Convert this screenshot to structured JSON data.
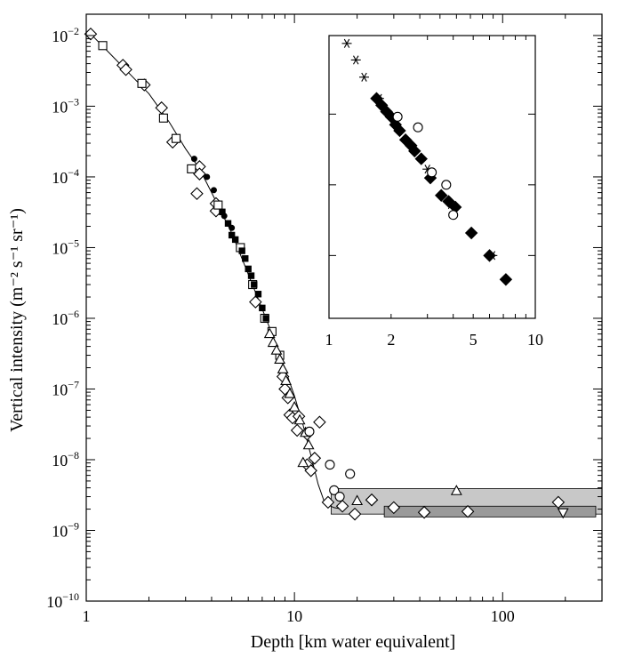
{
  "chart_data": [
    {
      "type": "scatter",
      "xscale": "log",
      "yscale": "log",
      "xlim": [
        1,
        300
      ],
      "ylim": [
        1e-10,
        0.02
      ],
      "xlabel": "Depth   [km water equivalent]",
      "ylabel": "Vertical intensity   (m⁻² s⁻¹ sr⁻¹)",
      "x_ticks": [
        {
          "value": 1,
          "label": "1"
        },
        {
          "value": 10,
          "label": "10"
        },
        {
          "value": 100,
          "label": "100"
        }
      ],
      "y_ticks": [
        {
          "value": 1e-10,
          "base": "10",
          "exp": "−10"
        },
        {
          "value": 1e-09,
          "base": "10",
          "exp": "−9"
        },
        {
          "value": 1e-08,
          "base": "10",
          "exp": "−8"
        },
        {
          "value": 1e-07,
          "base": "10",
          "exp": "−7"
        },
        {
          "value": 1e-06,
          "base": "10",
          "exp": "−6"
        },
        {
          "value": 1e-05,
          "base": "10",
          "exp": "−5"
        },
        {
          "value": 0.0001,
          "base": "10",
          "exp": "−4"
        },
        {
          "value": 0.001,
          "base": "10",
          "exp": "−3"
        },
        {
          "value": 0.01,
          "base": "10",
          "exp": "−2"
        }
      ],
      "curve": [
        [
          1.05,
          0.0105
        ],
        [
          1.5,
          0.0036
        ],
        [
          2.0,
          0.0015
        ],
        [
          2.5,
          0.0006
        ],
        [
          3.0,
          0.00025
        ],
        [
          3.5,
          0.00013
        ],
        [
          4.0,
          6e-05
        ],
        [
          5.0,
          1.6e-05
        ],
        [
          6.0,
          4.2e-06
        ],
        [
          7.0,
          1.35e-06
        ],
        [
          8.0,
          5e-07
        ],
        [
          9.0,
          1.95e-07
        ],
        [
          10.0,
          8e-08
        ],
        [
          11.0,
          3.1e-08
        ],
        [
          12.0,
          1.15e-08
        ],
        [
          13.0,
          4.5e-09
        ],
        [
          14.0,
          2.4e-09
        ],
        [
          15.5,
          2.1e-09
        ],
        [
          17.0,
          2e-09
        ]
      ],
      "bands": [
        {
          "x": [
            15,
            300
          ],
          "y_low": 1.7e-09,
          "y_high": 3.9e-09,
          "color": "#c8c8c8"
        },
        {
          "x": [
            27,
            280
          ],
          "y_low": 1.55e-09,
          "y_high": 2.2e-09,
          "color": "#9a9a9a"
        }
      ],
      "series": [
        {
          "marker": "diamond-open",
          "points": [
            {
              "x": 1.05,
              "y": 0.0105
            },
            {
              "x": 1.5,
              "y": 0.0038
            },
            {
              "x": 1.55,
              "y": 0.0033
            },
            {
              "x": 1.9,
              "y": 0.002
            },
            {
              "x": 2.3,
              "y": 0.00095
            },
            {
              "x": 2.6,
              "y": 0.00031
            },
            {
              "x": 3.5,
              "y": 0.00014
            },
            {
              "x": 3.5,
              "y": 0.00011
            },
            {
              "x": 3.4,
              "y": 5.8e-05
            },
            {
              "x": 4.2,
              "y": 4.2e-05
            },
            {
              "x": 4.2,
              "y": 3.3e-05
            },
            {
              "x": 6.5,
              "y": 1.7e-06
            },
            {
              "x": 8.8,
              "y": 1.5e-07
            },
            {
              "x": 9.0,
              "y": 1e-07
            },
            {
              "x": 9.3,
              "y": 7.5e-08
            },
            {
              "x": 9.5,
              "y": 4.3e-08
            },
            {
              "x": 9.8,
              "y": 3.9e-08
            },
            {
              "x": 10.3,
              "y": 2.6e-08
            },
            {
              "x": 10.5,
              "y": 4.1e-08
            },
            {
              "x": 11.5,
              "y": 2.3e-08
            },
            {
              "x": 13.2,
              "y": 3.4e-08
            },
            {
              "x": 12.5,
              "y": 1.05e-08
            },
            {
              "x": 11.5,
              "y": 8.5e-09
            },
            {
              "x": 12.0,
              "y": 7e-09
            },
            {
              "x": 14.5,
              "y": 2.5e-09
            },
            {
              "x": 17.0,
              "y": 2.2e-09
            },
            {
              "x": 19.5,
              "y": 1.7e-09
            },
            {
              "x": 23.5,
              "y": 2.7e-09
            },
            {
              "x": 30.0,
              "y": 2.1e-09
            },
            {
              "x": 42.0,
              "y": 1.8e-09
            },
            {
              "x": 68.0,
              "y": 1.85e-09
            },
            {
              "x": 185.0,
              "y": 2.5e-09
            }
          ]
        },
        {
          "marker": "square-open",
          "points": [
            {
              "x": 1.2,
              "y": 0.0072
            },
            {
              "x": 1.85,
              "y": 0.0021
            },
            {
              "x": 2.35,
              "y": 0.00068
            },
            {
              "x": 2.7,
              "y": 0.00035
            },
            {
              "x": 3.2,
              "y": 0.00013
            },
            {
              "x": 4.3,
              "y": 4e-05
            },
            {
              "x": 5.5,
              "y": 1e-05
            },
            {
              "x": 6.3,
              "y": 3e-06
            },
            {
              "x": 7.2,
              "y": 1e-06
            },
            {
              "x": 7.8,
              "y": 6.5e-07
            },
            {
              "x": 8.5,
              "y": 3e-07
            }
          ]
        },
        {
          "marker": "square-filled",
          "points": [
            {
              "x": 4.5,
              "y": 3.2e-05
            },
            {
              "x": 4.8,
              "y": 2.2e-05
            },
            {
              "x": 5.0,
              "y": 1.5e-05
            },
            {
              "x": 5.2,
              "y": 1.3e-05
            },
            {
              "x": 5.6,
              "y": 9e-06
            },
            {
              "x": 5.8,
              "y": 7e-06
            },
            {
              "x": 6.0,
              "y": 5e-06
            },
            {
              "x": 6.2,
              "y": 4e-06
            },
            {
              "x": 6.4,
              "y": 3e-06
            },
            {
              "x": 6.7,
              "y": 2.2e-06
            },
            {
              "x": 7.0,
              "y": 1.4e-06
            },
            {
              "x": 7.3,
              "y": 1e-06
            }
          ]
        },
        {
          "marker": "circle-filled",
          "points": [
            {
              "x": 3.3,
              "y": 0.00018
            },
            {
              "x": 3.8,
              "y": 0.0001
            },
            {
              "x": 4.1,
              "y": 6.5e-05
            },
            {
              "x": 4.6,
              "y": 2.8e-05
            },
            {
              "x": 5.0,
              "y": 1.9e-05
            }
          ]
        },
        {
          "marker": "triangle-up-open",
          "points": [
            {
              "x": 7.6,
              "y": 6e-07
            },
            {
              "x": 7.9,
              "y": 4.5e-07
            },
            {
              "x": 8.2,
              "y": 3.5e-07
            },
            {
              "x": 8.5,
              "y": 2.6e-07
            },
            {
              "x": 8.8,
              "y": 1.9e-07
            },
            {
              "x": 9.1,
              "y": 1.3e-07
            },
            {
              "x": 9.5,
              "y": 8.5e-08
            },
            {
              "x": 10.0,
              "y": 5.5e-08
            },
            {
              "x": 10.6,
              "y": 3.6e-08
            },
            {
              "x": 11.3,
              "y": 2.4e-08
            },
            {
              "x": 11.7,
              "y": 1.6e-08
            },
            {
              "x": 11.0,
              "y": 9e-09
            },
            {
              "x": 20.0,
              "y": 2.6e-09
            },
            {
              "x": 60.0,
              "y": 3.6e-09
            }
          ]
        },
        {
          "marker": "circle-open",
          "points": [
            {
              "x": 11.8,
              "y": 2.5e-08
            },
            {
              "x": 14.8,
              "y": 8.5e-09
            },
            {
              "x": 15.5,
              "y": 3.7e-09
            },
            {
              "x": 16.5,
              "y": 3e-09
            },
            {
              "x": 18.5,
              "y": 6.3e-09
            }
          ]
        },
        {
          "marker": "triangle-down-open",
          "points": [
            {
              "x": 195.0,
              "y": 1.8e-09
            }
          ]
        }
      ]
    },
    {
      "type": "scatter",
      "panel": "inset",
      "xscale": "log",
      "yscale": "log",
      "xlim": [
        1,
        10
      ],
      "x_ticks": [
        {
          "value": 1,
          "label": "1"
        },
        {
          "value": 2,
          "label": "2"
        },
        {
          "value": 5,
          "label": "5"
        },
        {
          "value": 10,
          "label": "10"
        }
      ],
      "series": [
        {
          "marker": "asterisk",
          "points": [
            {
              "x": 1.22,
              "y": 0.012
            },
            {
              "x": 1.35,
              "y": 0.007
            },
            {
              "x": 1.48,
              "y": 0.004
            },
            {
              "x": 1.75,
              "y": 0.002
            },
            {
              "x": 3.0,
              "y": 0.0002
            },
            {
              "x": 3.9,
              "y": 6.3e-05
            },
            {
              "x": 6.2,
              "y": 1.2e-05
            }
          ]
        },
        {
          "marker": "diamond-filled",
          "points": [
            {
              "x": 1.7,
              "y": 0.002
            },
            {
              "x": 1.8,
              "y": 0.0016
            },
            {
              "x": 1.9,
              "y": 0.0013
            },
            {
              "x": 2.0,
              "y": 0.0011
            },
            {
              "x": 2.1,
              "y": 0.00085
            },
            {
              "x": 2.2,
              "y": 0.0007
            },
            {
              "x": 2.35,
              "y": 0.00052
            },
            {
              "x": 2.5,
              "y": 0.00043
            },
            {
              "x": 2.6,
              "y": 0.00036
            },
            {
              "x": 2.8,
              "y": 0.00028
            },
            {
              "x": 3.1,
              "y": 0.00015
            },
            {
              "x": 3.5,
              "y": 8.5e-05
            },
            {
              "x": 3.8,
              "y": 7e-05
            },
            {
              "x": 4.1,
              "y": 5.8e-05
            },
            {
              "x": 4.9,
              "y": 2.5e-05
            },
            {
              "x": 6.0,
              "y": 1.2e-05
            },
            {
              "x": 7.2,
              "y": 5.5e-06
            }
          ]
        },
        {
          "marker": "circle-open",
          "points": [
            {
              "x": 2.15,
              "y": 0.0011
            },
            {
              "x": 2.7,
              "y": 0.00078
            },
            {
              "x": 3.15,
              "y": 0.00018
            },
            {
              "x": 3.7,
              "y": 0.00012
            },
            {
              "x": 4.0,
              "y": 4.5e-05
            }
          ]
        }
      ]
    }
  ]
}
